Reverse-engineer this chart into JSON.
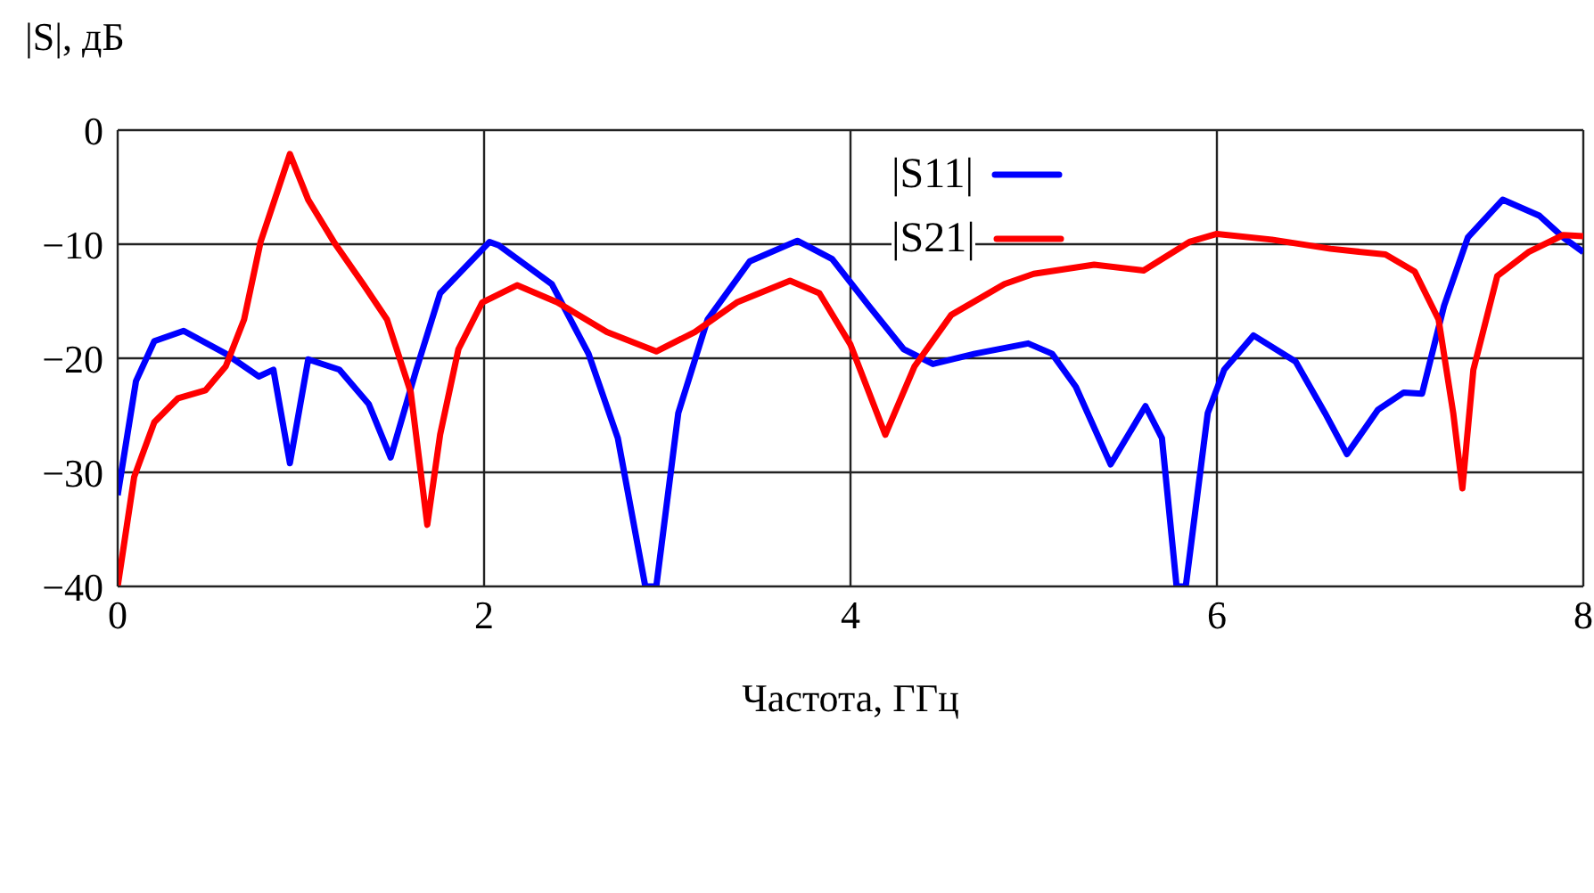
{
  "chart_data": {
    "type": "line",
    "ylabel": "|S|, дБ",
    "xlabel": "Частота, ГГц",
    "xlim": [
      0,
      8
    ],
    "xticks": [
      0,
      2,
      4,
      6,
      8
    ],
    "ylim": [
      -40,
      0
    ],
    "yticks": [
      0,
      -10,
      -20,
      -30,
      -40
    ],
    "grid": true,
    "legend": "top right",
    "marker": "none",
    "line_style": "solid",
    "series": [
      {
        "name": "|S11|",
        "color": "#0000ff",
        "x": [
          0,
          0.1,
          0.2,
          0.36,
          0.59,
          0.77,
          0.85,
          0.94,
          1.04,
          1.21,
          1.37,
          1.49,
          1.63,
          1.76,
          2.03,
          2.08,
          2.37,
          2.57,
          2.73,
          2.88,
          2.94,
          3.06,
          3.22,
          3.45,
          3.71,
          3.9,
          4.1,
          4.29,
          4.45,
          4.68,
          4.97,
          5.1,
          5.23,
          5.42,
          5.61,
          5.7,
          5.78,
          5.83,
          5.95,
          6.04,
          6.2,
          6.43,
          6.59,
          6.71,
          6.88,
          7.02,
          7.12,
          7.24,
          7.37,
          7.56,
          7.76,
          7.89,
          8
        ],
        "values": [
          -32,
          -22,
          -18.5,
          -17.6,
          -19.6,
          -21.6,
          -21,
          -29.2,
          -20.1,
          -21,
          -24,
          -28.7,
          -21,
          -14.3,
          -9.8,
          -10.1,
          -13.5,
          -19.6,
          -27,
          -40,
          -40,
          -24.8,
          -16.6,
          -11.5,
          -9.7,
          -11.3,
          -15.4,
          -19.2,
          -20.5,
          -19.6,
          -18.7,
          -19.6,
          -22.5,
          -29.3,
          -24.2,
          -27,
          -40,
          -40,
          -24.8,
          -21,
          -18,
          -20.3,
          -24.8,
          -28.4,
          -24.5,
          -23,
          -23.1,
          -15.4,
          -9.4,
          -6.1,
          -7.5,
          -9.4,
          -10.7
        ]
      },
      {
        "name": "|S21|",
        "color": "#ff0000",
        "x": [
          0,
          0.09,
          0.2,
          0.33,
          0.48,
          0.59,
          0.69,
          0.78,
          0.94,
          1.04,
          1.18,
          1.34,
          1.47,
          1.6,
          1.69,
          1.76,
          1.86,
          1.99,
          2.18,
          2.4,
          2.67,
          2.94,
          3.15,
          3.38,
          3.67,
          3.83,
          4.0,
          4.19,
          4.35,
          4.55,
          4.84,
          5.0,
          5.33,
          5.6,
          5.85,
          6.0,
          6.3,
          6.62,
          6.92,
          7.08,
          7.21,
          7.29,
          7.34,
          7.4,
          7.53,
          7.7,
          7.89,
          8
        ],
        "values": [
          -40,
          -30.4,
          -25.6,
          -23.5,
          -22.8,
          -20.7,
          -16.6,
          -9.8,
          -2.1,
          -6.1,
          -9.8,
          -13.5,
          -16.6,
          -23,
          -34.6,
          -26.7,
          -19.2,
          -15.1,
          -13.6,
          -15.1,
          -17.7,
          -19.4,
          -17.7,
          -15.1,
          -13.2,
          -14.3,
          -18.8,
          -26.7,
          -20.7,
          -16.2,
          -13.5,
          -12.6,
          -11.8,
          -12.3,
          -9.8,
          -9.1,
          -9.6,
          -10.4,
          -10.9,
          -12.4,
          -16.6,
          -24.8,
          -31.4,
          -21,
          -12.8,
          -10.7,
          -9.2,
          -9.3
        ]
      }
    ]
  }
}
